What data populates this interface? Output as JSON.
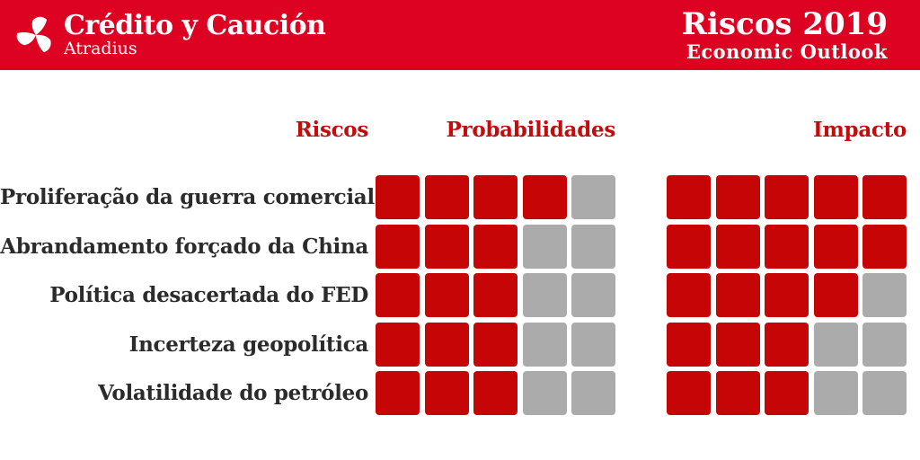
{
  "header": {
    "brand_name": "Crédito y Caución",
    "brand_tagline": "Atradius",
    "title": "Riscos 2019",
    "subtitle": "Economic Outlook"
  },
  "columns": {
    "risks": "Riscos",
    "probability": "Probabilidades",
    "impact": "Impacto"
  },
  "chart_data": {
    "type": "table",
    "title": "Riscos 2019",
    "subtitle": "Economic Outlook",
    "columns": [
      "Riscos",
      "Probabilidades",
      "Impacto"
    ],
    "value_scale": {
      "min": 0,
      "max": 5,
      "unit": "filled squares out of 5"
    },
    "rows": [
      {
        "risco": "Proliferação da guerra comercial",
        "probabilidade": 4,
        "impacto": 5
      },
      {
        "risco": "Abrandamento forçado da China",
        "probabilidade": 3,
        "impacto": 5
      },
      {
        "risco": "Política desacertada do FED",
        "probabilidade": 3,
        "impacto": 4
      },
      {
        "risco": "Incerteza geopolítica",
        "probabilidade": 3,
        "impacto": 3
      },
      {
        "risco": "Volatilidade do petróleo",
        "probabilidade": 3,
        "impacto": 3
      }
    ]
  },
  "colors": {
    "header_red": "#DE0222",
    "square_red": "#C60606",
    "square_gray": "#ABABAB",
    "heading_red": "#C30D0D",
    "label_dark": "#2B2B2B"
  }
}
